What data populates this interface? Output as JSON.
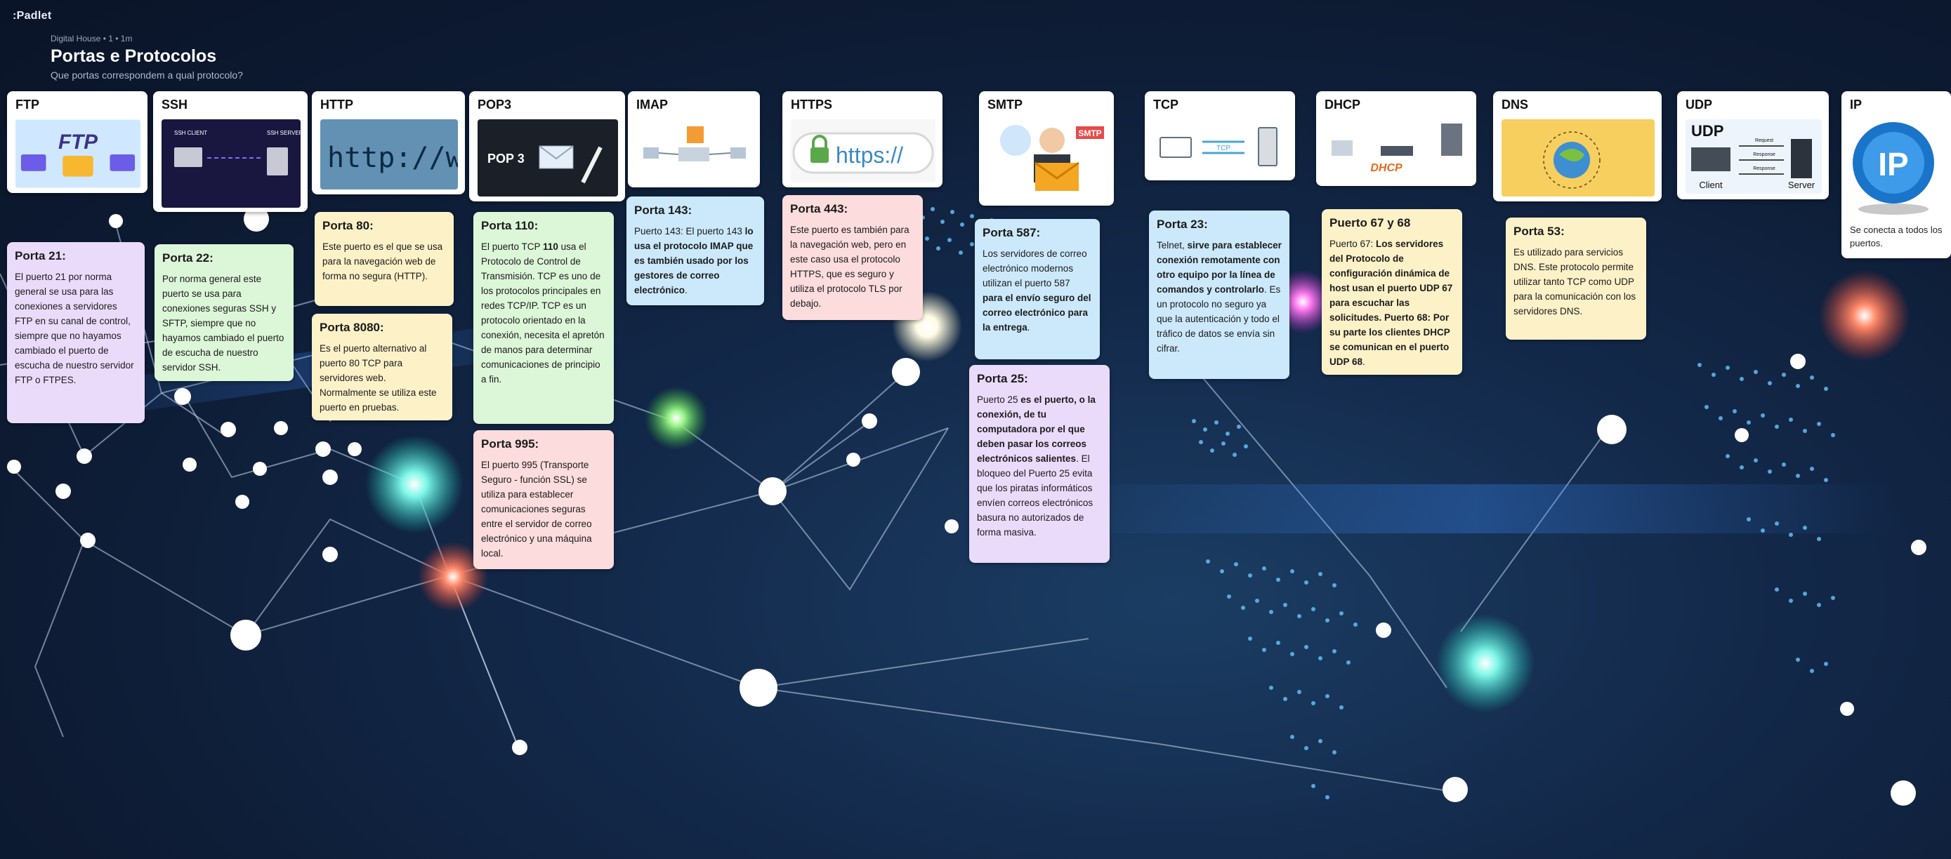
{
  "app": {
    "logo": ":Padlet"
  },
  "header": {
    "meta": "Digital House • 1 • 1m",
    "title": "Portas e Protocolos",
    "subtitle": "Que portas correspondem a qual protocolo?"
  },
  "columns": [
    {
      "title": "FTP",
      "image_text": "FTP"
    },
    {
      "title": "SSH",
      "image_text": [
        "SSH CLIENT",
        "SSH SERVER"
      ]
    },
    {
      "title": "HTTP",
      "image_text": "http://www"
    },
    {
      "title": "POP3",
      "image_text": "POP 3"
    },
    {
      "title": "IMAP",
      "image_text": ""
    },
    {
      "title": "HTTPS",
      "image_text": "https://"
    },
    {
      "title": "SMTP",
      "image_text": "SMTP"
    },
    {
      "title": "TCP",
      "image_text": "TCP"
    },
    {
      "title": "DHCP",
      "image_text": "DHCP"
    },
    {
      "title": "DNS",
      "image_text": ""
    },
    {
      "title": "UDP",
      "image_text": {
        "big": "UDP",
        "request": "Request",
        "response": "Response",
        "client": "Client",
        "server": "Server"
      }
    },
    {
      "title": "IP",
      "image_text": "IP",
      "body": "Se conecta a todos los puertos."
    }
  ],
  "posts": {
    "ftp_21": {
      "title": "Porta 21:",
      "body": "El puerto 21 por norma general se usa para las conexiones a servidores FTP en su canal de control, siempre que no hayamos cambiado el puerto de escucha de nuestro servidor FTP o FTPES."
    },
    "ssh_22": {
      "title": "Porta 22:",
      "body": "Por norma general este puerto se usa para conexiones seguras SSH y SFTP, siempre que no hayamos cambiado el puerto de escucha de nuestro servidor SSH."
    },
    "http_80": {
      "title": "Porta 80:",
      "body": "Este puerto es el que se usa para la navegación web de forma no segura (HTTP)."
    },
    "http_8080": {
      "title": "Porta 8080:",
      "body": "Es el puerto alternativo al puerto 80 TCP para servidores web. Normalmente se utiliza este puerto en pruebas."
    },
    "pop3_110": {
      "title": "Porta 110:",
      "body_a": "El puerto TCP ",
      "body_b": "110",
      "body_c": " usa el Protocolo de Control de Transmisión. TCP es uno de los protocolos principales en redes TCP/IP. TCP es un protocolo orientado en la conexión, necesita el apretón de manos para determinar comunicaciones de principio a fin."
    },
    "pop3_995": {
      "title": "Porta 995:",
      "body": "El puerto 995 (Transporte Seguro - función SSL) se utiliza para establecer comunicaciones seguras entre el servidor de correo electrónico y una máquina local."
    },
    "imap_143": {
      "title": "Porta 143:",
      "body_a": "Puerto 143: El puerto 143 ",
      "body_b": "lo usa el protocolo IMAP que es también usado por los gestores de correo electrónico",
      "body_c": "."
    },
    "https_443": {
      "title": "Porta 443:",
      "body": "Este puerto es también para la navegación web, pero en este caso usa el protocolo HTTPS, que es seguro y utiliza el protocolo TLS por debajo."
    },
    "smtp_587": {
      "title": "Porta 587:",
      "body_a": "Los servidores de correo electrónico modernos utilizan el puerto 587 ",
      "body_b": "para el envío seguro del correo electrónico para la entrega",
      "body_c": "."
    },
    "smtp_25": {
      "title": "Porta 25:",
      "body_a": "Puerto 25 ",
      "body_b": "es el puerto, o la conexión, de tu computadora por el que deben pasar los correos electrónicos salientes",
      "body_c": ". El bloqueo del Puerto 25 evita que los piratas informáticos envíen correos electrónicos basura no autorizados de forma masiva."
    },
    "tcp_23": {
      "title": "Porta 23:",
      "body_a": "Telnet, ",
      "body_b": "sirve para establecer conexión remotamente con otro equipo por la línea de comandos y controlarlo",
      "body_c": ". Es un protocolo no seguro ya que la autenticación y todo el tráfico de datos se envía sin cifrar."
    },
    "dhcp_67": {
      "title": "Puerto 67 y 68",
      "body_a": "Puerto 67: ",
      "body_b": "Los servidores del Protocolo de configuración dinámica de host usan el puerto UDP 67 para escuchar las solicitudes. Puerto 68: Por su parte los clientes DHCP se comunican en el puerto UDP 68",
      "body_c": "."
    },
    "dns_53": {
      "title": "Porta 53:",
      "body": "Es utilizado para servicios DNS. Este protocolo permite utilizar tanto TCP como UDP para la comunicación con los servidores DNS."
    }
  }
}
